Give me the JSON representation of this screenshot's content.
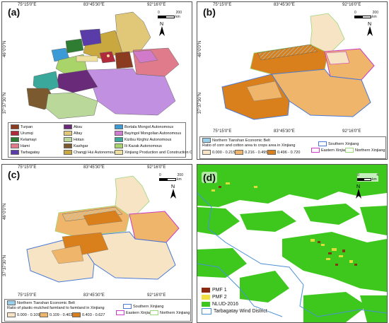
{
  "coords": {
    "top_lon": [
      "75°15'0\"E",
      "83°45'30\"E",
      "92°16'0\"E"
    ],
    "bottom_lon": [
      "75°15'0\"E",
      "83°45'30\"E",
      "92°16'0\"E"
    ],
    "lat": [
      "46°0'0\"N",
      "37°37'30\"N"
    ]
  },
  "scale": {
    "zero": "0",
    "max": "200",
    "unit": "km"
  },
  "north": "N",
  "panels": {
    "a": {
      "label": "(a)",
      "legend": {
        "col1": [
          {
            "name": "Turpan",
            "color": "#8b3b1f"
          },
          {
            "name": "Urumqi",
            "color": "#b02a3c"
          },
          {
            "name": "Kelamayi",
            "color": "#2e7d32"
          },
          {
            "name": "Hami",
            "color": "#e07b8b"
          },
          {
            "name": "Tarbagatay",
            "color": "#5a3ca8"
          }
        ],
        "col2": [
          {
            "name": "Aksu",
            "color": "#6a2a7a"
          },
          {
            "name": "Altay",
            "color": "#e0c878"
          },
          {
            "name": "Hotan",
            "color": "#b9d89a"
          },
          {
            "name": "Kashgar",
            "color": "#7a5a2e"
          },
          {
            "name": "Changji Hui Autonomous",
            "color": "#c9a840"
          }
        ],
        "col3": [
          {
            "name": "Bortala Mongol Autonomous",
            "color": "#3c9ad6"
          },
          {
            "name": "Bayingol Mongolian Autonomous",
            "color": "#d07ad0"
          },
          {
            "name": "Kizilsu Kirghiz Autonomous",
            "color": "#3aa89a"
          },
          {
            "name": "Ili Kazak Autonomous",
            "color": "#a8d46a"
          },
          {
            "name": "Xinjiang Production and Construction Corps",
            "color": "#f0e0a0"
          }
        ]
      }
    },
    "b": {
      "label": "(b)",
      "legend": {
        "belt": "Northern Tianshan Economic Belt",
        "title": "Ratio of corn and cotton area to crops area in Xinjiang",
        "classes": [
          {
            "range": "0.000 - 0.215",
            "color": "#f7e4c4"
          },
          {
            "range": "0.216 - 0.495",
            "color": "#efb56a"
          },
          {
            "range": "0.496 - 0.720",
            "color": "#d9801c"
          }
        ],
        "regions": [
          {
            "name": "Southern Xinjiang",
            "color": "#4a7ad6"
          },
          {
            "name": "Eastern Xinjiang",
            "color": "#c83cc8"
          },
          {
            "name": "Northern Xinjiang",
            "color": "#9ad67a"
          }
        ]
      }
    },
    "c": {
      "label": "(c)",
      "legend": {
        "belt": "Northern Tianshan Economic Belt",
        "title": "Ratio of plastic-mulched farmland to farmland in Xinjiang",
        "classes": [
          {
            "range": "0.000 - 0.109",
            "color": "#f7e4c4"
          },
          {
            "range": "0.109 - 0.403",
            "color": "#efb56a"
          },
          {
            "range": "0.403 - 0.627",
            "color": "#d9801c"
          }
        ],
        "regions": [
          {
            "name": "Southern Xinjiang",
            "color": "#4a7ad6"
          },
          {
            "name": "Eastern Xinjiang",
            "color": "#c83cc8"
          },
          {
            "name": "Northern Xinjiang",
            "color": "#9ad67a"
          }
        ]
      }
    },
    "d": {
      "label": "(d)",
      "scale": {
        "zero": "0",
        "max": "4",
        "unit": "km"
      },
      "legend": [
        {
          "name": "PMF 1",
          "color": "#8b2a10"
        },
        {
          "name": "PMF 2",
          "color": "#f0e040"
        },
        {
          "name": "NLUD-2016",
          "color": "#3ec81e"
        },
        {
          "name": "Tarbagatay Wind District",
          "color": "#4a90d6"
        }
      ]
    }
  }
}
